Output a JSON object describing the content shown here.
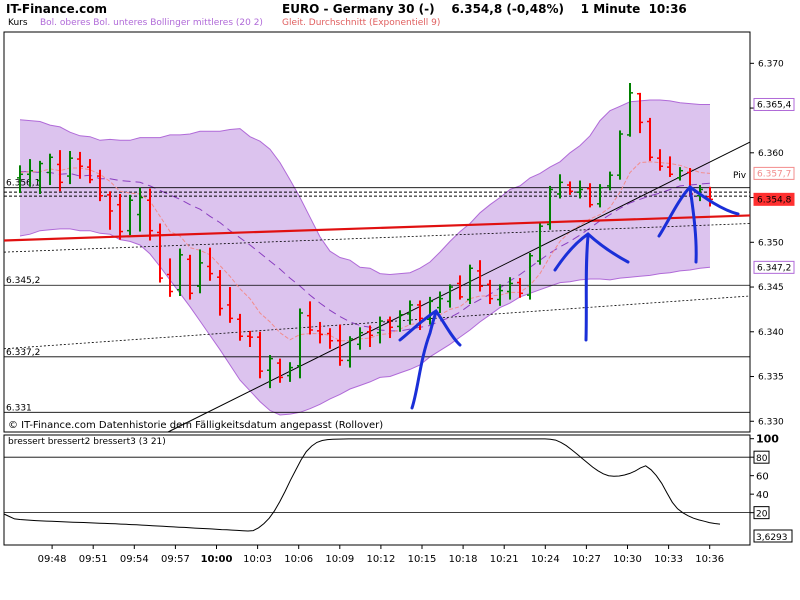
{
  "header": {
    "brand": "IT-Finance.com",
    "instrument": "EURO - Germany 30 (-)",
    "quote": "6.354,8 (-0,48%)",
    "interval": "1 Minute",
    "time": "10:36"
  },
  "legend": {
    "price_label": "Kurs",
    "bollinger": "Bol. oberes Bol. unteres Bollinger mittleres (20 2)",
    "ema": "Gleit. Durchschnitt (Exponentiell 9)"
  },
  "footer_note": "© IT-Finance.com Datenhistorie dem Fälligkeitsdatum angepasst (Rollover)",
  "indicator_legend": "bressert bressert2 bressert3 (3 21)",
  "pivot_label": "Piv",
  "colors": {
    "up": "#008000",
    "down": "#ff0000",
    "band": "#dcc3ee",
    "band_line": "#b06ad8",
    "ema": "#f28c8c",
    "trend": "#e01010",
    "annot": "#1a2fd8",
    "last_tag": "#ff3030"
  },
  "chart_data": [
    {
      "type": "ohlc",
      "title": "EURO - Germany 30 (-)",
      "x_ticks": [
        "09:48",
        "09:51",
        "09:54",
        "09:57",
        "10:00",
        "10:03",
        "10:06",
        "10:09",
        "10:12",
        "10:15",
        "10:18",
        "10:21",
        "10:24",
        "10:27",
        "10:30",
        "10:33",
        "10:36"
      ],
      "y_ticks": [
        "6.330",
        "6.335",
        "6.340",
        "6.345",
        "6.350",
        "6.355",
        "6.360",
        "6.365",
        "6.370"
      ],
      "ylim": [
        6328.8,
        6373.5
      ],
      "level_labels": [
        "6.356,1",
        "6.345,2",
        "6.337,2",
        "6.331"
      ],
      "level_values": [
        6356.1,
        6345.2,
        6337.2,
        6331.0
      ],
      "price_tags": [
        {
          "label": "6.365,4",
          "value": 6365.4,
          "kind": "upper"
        },
        {
          "label": "6.357,7",
          "value": 6357.7,
          "kind": "ema"
        },
        {
          "label": "6.354,8",
          "value": 6354.8,
          "kind": "last"
        },
        {
          "label": "6.347,2",
          "value": 6347.2,
          "kind": "lower"
        }
      ],
      "pivot": 6355.6,
      "bars": [
        {
          "t": "09:46",
          "o": 6357.2,
          "h": 6358.6,
          "l": 6355.5,
          "c": 6357.6
        },
        {
          "t": "09:46",
          "o": 6357.6,
          "h": 6359.3,
          "l": 6356.2,
          "c": 6358.0
        },
        {
          "t": "09:47",
          "o": 6356.9,
          "h": 6359.1,
          "l": 6355.4,
          "c": 6358.8
        },
        {
          "t": "09:47",
          "o": 6357.8,
          "h": 6359.9,
          "l": 6356.4,
          "c": 6359.5
        },
        {
          "t": "09:48",
          "o": 6358.7,
          "h": 6360.3,
          "l": 6355.7,
          "c": 6356.7
        },
        {
          "t": "09:48",
          "o": 6357.4,
          "h": 6360.2,
          "l": 6356.5,
          "c": 6359.4
        },
        {
          "t": "09:49",
          "o": 6359.3,
          "h": 6360.1,
          "l": 6357.1,
          "c": 6358.5
        },
        {
          "t": "09:49",
          "o": 6358.4,
          "h": 6359.3,
          "l": 6356.6,
          "c": 6357.0
        },
        {
          "t": "09:50",
          "o": 6357.4,
          "h": 6358.1,
          "l": 6354.6,
          "c": 6355.2
        },
        {
          "t": "09:50",
          "o": 6355.3,
          "h": 6355.7,
          "l": 6351.4,
          "c": 6353.5
        },
        {
          "t": "09:51",
          "o": 6354.2,
          "h": 6355.4,
          "l": 6350.3,
          "c": 6351.2
        },
        {
          "t": "09:51",
          "o": 6351.3,
          "h": 6355.3,
          "l": 6350.8,
          "c": 6354.7
        },
        {
          "t": "09:52",
          "o": 6353.1,
          "h": 6356.1,
          "l": 6351.2,
          "c": 6355.0
        },
        {
          "t": "09:52",
          "o": 6354.7,
          "h": 6356.0,
          "l": 6350.2,
          "c": 6351.3
        },
        {
          "t": "09:53",
          "o": 6351.1,
          "h": 6352.1,
          "l": 6345.5,
          "c": 6346.0
        },
        {
          "t": "09:53",
          "o": 6346.4,
          "h": 6348.2,
          "l": 6343.9,
          "c": 6344.5
        },
        {
          "t": "09:54",
          "o": 6344.7,
          "h": 6349.3,
          "l": 6344.0,
          "c": 6348.6
        },
        {
          "t": "09:54",
          "o": 6348.1,
          "h": 6348.6,
          "l": 6343.6,
          "c": 6344.3
        },
        {
          "t": "09:55",
          "o": 6345.1,
          "h": 6349.2,
          "l": 6344.3,
          "c": 6347.7
        },
        {
          "t": "09:55",
          "o": 6347.3,
          "h": 6349.4,
          "l": 6345.7,
          "c": 6346.5
        },
        {
          "t": "09:56",
          "o": 6346.1,
          "h": 6346.9,
          "l": 6341.8,
          "c": 6342.6
        },
        {
          "t": "09:56",
          "o": 6343.0,
          "h": 6345.0,
          "l": 6341.0,
          "c": 6341.5
        },
        {
          "t": "09:57",
          "o": 6341.4,
          "h": 6342.0,
          "l": 6339.0,
          "c": 6339.5
        },
        {
          "t": "09:57",
          "o": 6339.5,
          "h": 6340.1,
          "l": 6338.3,
          "c": 6339.4
        },
        {
          "t": "09:58",
          "o": 6339.4,
          "h": 6340.0,
          "l": 6334.8,
          "c": 6335.6
        },
        {
          "t": "09:58",
          "o": 6335.7,
          "h": 6337.4,
          "l": 6333.7,
          "c": 6337.0
        },
        {
          "t": "09:59",
          "o": 6336.5,
          "h": 6337.0,
          "l": 6334.3,
          "c": 6334.9
        },
        {
          "t": "09:59",
          "o": 6335.1,
          "h": 6336.6,
          "l": 6334.4,
          "c": 6336.0
        },
        {
          "t": "10:00",
          "o": 6336.2,
          "h": 6342.6,
          "l": 6334.8,
          "c": 6342.1
        },
        {
          "t": "10:00",
          "o": 6341.8,
          "h": 6343.4,
          "l": 6339.7,
          "c": 6340.2
        },
        {
          "t": "10:01",
          "o": 6340.1,
          "h": 6341.1,
          "l": 6338.7,
          "c": 6339.7
        },
        {
          "t": "10:01",
          "o": 6339.8,
          "h": 6340.4,
          "l": 6338.1,
          "c": 6339.0
        },
        {
          "t": "10:02",
          "o": 6339.0,
          "h": 6340.8,
          "l": 6336.2,
          "c": 6336.8
        },
        {
          "t": "10:02",
          "o": 6336.8,
          "h": 6339.5,
          "l": 6336.0,
          "c": 6339.2
        },
        {
          "t": "10:03",
          "o": 6338.6,
          "h": 6340.5,
          "l": 6338.0,
          "c": 6339.9
        },
        {
          "t": "10:03",
          "o": 6340.0,
          "h": 6340.7,
          "l": 6338.3,
          "c": 6339.6
        },
        {
          "t": "10:04",
          "o": 6339.9,
          "h": 6341.7,
          "l": 6338.7,
          "c": 6341.2
        },
        {
          "t": "10:04",
          "o": 6341.3,
          "h": 6341.7,
          "l": 6339.3,
          "c": 6340.5
        },
        {
          "t": "10:05",
          "o": 6340.6,
          "h": 6342.4,
          "l": 6340.0,
          "c": 6341.9
        },
        {
          "t": "10:05",
          "o": 6342.0,
          "h": 6343.5,
          "l": 6340.8,
          "c": 6343.0
        },
        {
          "t": "10:06",
          "o": 6343.0,
          "h": 6343.5,
          "l": 6340.2,
          "c": 6341.5
        },
        {
          "t": "10:06",
          "o": 6341.4,
          "h": 6343.9,
          "l": 6340.8,
          "c": 6343.4
        },
        {
          "t": "10:07",
          "o": 6342.7,
          "h": 6344.5,
          "l": 6342.1,
          "c": 6343.7
        },
        {
          "t": "10:07",
          "o": 6343.4,
          "h": 6345.3,
          "l": 6342.7,
          "c": 6345.0
        },
        {
          "t": "10:08",
          "o": 6345.4,
          "h": 6346.3,
          "l": 6343.6,
          "c": 6343.9
        },
        {
          "t": "10:08",
          "o": 6343.6,
          "h": 6347.5,
          "l": 6343.1,
          "c": 6347.1
        },
        {
          "t": "10:09",
          "o": 6346.8,
          "h": 6348.0,
          "l": 6344.5,
          "c": 6345.1
        },
        {
          "t": "10:09",
          "o": 6345.3,
          "h": 6345.8,
          "l": 6343.1,
          "c": 6343.7
        },
        {
          "t": "10:10",
          "o": 6343.6,
          "h": 6345.3,
          "l": 6342.9,
          "c": 6344.6
        },
        {
          "t": "10:10",
          "o": 6344.5,
          "h": 6346.1,
          "l": 6343.6,
          "c": 6345.4
        },
        {
          "t": "10:11",
          "o": 6345.5,
          "h": 6346.0,
          "l": 6343.8,
          "c": 6344.3
        },
        {
          "t": "10:11",
          "o": 6344.1,
          "h": 6348.8,
          "l": 6343.6,
          "c": 6348.5
        },
        {
          "t": "10:12",
          "o": 6347.9,
          "h": 6352.1,
          "l": 6347.5,
          "c": 6351.8
        },
        {
          "t": "10:12",
          "o": 6352.0,
          "h": 6356.3,
          "l": 6351.4,
          "c": 6355.9
        },
        {
          "t": "10:13",
          "o": 6355.4,
          "h": 6357.6,
          "l": 6354.9,
          "c": 6356.7
        },
        {
          "t": "10:13",
          "o": 6356.4,
          "h": 6356.8,
          "l": 6355.3,
          "c": 6355.7
        },
        {
          "t": "10:14",
          "o": 6355.6,
          "h": 6356.9,
          "l": 6354.9,
          "c": 6355.9
        },
        {
          "t": "10:14",
          "o": 6356.0,
          "h": 6356.6,
          "l": 6353.9,
          "c": 6354.2
        },
        {
          "t": "10:15",
          "o": 6354.3,
          "h": 6356.5,
          "l": 6353.9,
          "c": 6356.1
        },
        {
          "t": "10:15",
          "o": 6356.3,
          "h": 6357.9,
          "l": 6355.8,
          "c": 6357.5
        },
        {
          "t": "10:16",
          "o": 6357.5,
          "h": 6362.5,
          "l": 6357.0,
          "c": 6362.1
        },
        {
          "t": "10:16",
          "o": 6362.0,
          "h": 6367.8,
          "l": 6361.8,
          "c": 6366.7
        },
        {
          "t": "10:17",
          "o": 6366.6,
          "h": 6366.7,
          "l": 6362.2,
          "c": 6363.4
        },
        {
          "t": "10:17",
          "o": 6363.5,
          "h": 6363.9,
          "l": 6359.1,
          "c": 6359.5
        },
        {
          "t": "10:18",
          "o": 6359.4,
          "h": 6360.4,
          "l": 6358.0,
          "c": 6358.5
        },
        {
          "t": "10:18",
          "o": 6358.4,
          "h": 6359.6,
          "l": 6357.3,
          "c": 6357.6
        },
        {
          "t": "10:19",
          "o": 6357.2,
          "h": 6358.4,
          "l": 6356.9,
          "c": 6358.0
        },
        {
          "t": "10:19",
          "o": 6357.8,
          "h": 6358.3,
          "l": 6355.2,
          "c": 6355.4
        },
        {
          "t": "10:20",
          "o": 6355.2,
          "h": 6356.4,
          "l": 6354.6,
          "c": 6355.9
        },
        {
          "t": "10:20",
          "o": 6355.1,
          "h": 6356.2,
          "l": 6354.0,
          "c": 6354.8
        }
      ],
      "bollinger": {
        "upper": [
          6363.7,
          6363.6,
          6363.5,
          6363.1,
          6362.9,
          6362.3,
          6361.9,
          6361.8,
          6361.4,
          6361.5,
          6361.4,
          6361.4,
          6361.7,
          6361.7,
          6361.7,
          6362.0,
          6362.0,
          6362.1,
          6362.4,
          6362.4,
          6362.4,
          6362.6,
          6362.7,
          6361.8,
          6361.3,
          6360.4,
          6358.9,
          6357.0,
          6355.0,
          6352.8,
          6350.6,
          6349.0,
          6348.3,
          6348.0,
          6347.2,
          6347.1,
          6346.5,
          6346.4,
          6346.5,
          6346.6,
          6347.1,
          6347.8,
          6348.9,
          6350.1,
          6351.2,
          6352.1,
          6353.3,
          6354.2,
          6355.0,
          6355.9,
          6356.3,
          6357.2,
          6357.7,
          6358.4,
          6359.0,
          6360.0,
          6360.8,
          6361.9,
          6363.6,
          6364.7,
          6365.2,
          6365.7,
          6365.8,
          6365.9,
          6365.9,
          6365.8,
          6365.6,
          6365.5,
          6365.4,
          6365.4
        ],
        "middle": [
          6357.9,
          6357.9,
          6357.8,
          6357.8,
          6357.6,
          6357.7,
          6357.4,
          6357.5,
          6357.1,
          6357.1,
          6356.9,
          6356.8,
          6356.7,
          6356.3,
          6355.8,
          6355.3,
          6354.8,
          6354.2,
          6353.7,
          6352.9,
          6352.2,
          6351.3,
          6350.5,
          6349.7,
          6348.8,
          6347.9,
          6347.0,
          6346.0,
          6345.1,
          6344.1,
          6343.2,
          6342.4,
          6341.7,
          6341.1,
          6340.7,
          6340.5,
          6340.2,
          6340.1,
          6340.1,
          6340.3,
          6340.5,
          6340.7,
          6341.2,
          6341.6,
          6342.2,
          6343.0,
          6343.6,
          6344.2,
          6344.9,
          6345.7,
          6346.4,
          6347.2,
          6348.0,
          6348.8,
          6349.5,
          6350.1,
          6350.8,
          6351.6,
          6352.4,
          6353.1,
          6353.8,
          6354.4,
          6354.8,
          6355.2,
          6355.5,
          6355.9,
          6356.3,
          6356.4,
          6356.5,
          6356.6
        ],
        "lower": [
          6350.7,
          6350.9,
          6351.3,
          6351.4,
          6351.5,
          6351.5,
          6351.3,
          6351.3,
          6351.0,
          6350.9,
          6350.3,
          6350.1,
          6349.7,
          6348.7,
          6347.3,
          6345.8,
          6344.3,
          6342.8,
          6341.2,
          6339.6,
          6338.0,
          6336.3,
          6334.6,
          6333.4,
          6332.2,
          6331.2,
          6330.7,
          6330.8,
          6331.0,
          6331.4,
          6331.9,
          6332.5,
          6333.0,
          6333.6,
          6334.0,
          6334.4,
          6334.9,
          6335.0,
          6335.4,
          6335.8,
          6336.3,
          6337.2,
          6337.9,
          6338.6,
          6339.4,
          6340.2,
          6341.1,
          6341.9,
          6342.7,
          6343.2,
          6343.9,
          6344.3,
          6344.7,
          6345.1,
          6345.5,
          6345.6,
          6345.8,
          6345.9,
          6345.9,
          6345.8,
          6346.0,
          6346.1,
          6346.2,
          6346.3,
          6346.5,
          6346.6,
          6346.8,
          6346.9,
          6347.1,
          6347.2
        ]
      },
      "ema9": [
        6357.8,
        6357.9,
        6357.9,
        6358.2,
        6358.0,
        6358.3,
        6358.3,
        6358.1,
        6357.6,
        6356.8,
        6355.7,
        6355.5,
        6355.4,
        6354.6,
        6352.9,
        6351.2,
        6350.7,
        6349.4,
        6349.1,
        6348.6,
        6347.4,
        6346.2,
        6344.8,
        6343.7,
        6342.1,
        6341.1,
        6339.9,
        6339.1,
        6339.7,
        6339.8,
        6339.8,
        6339.6,
        6339.0,
        6339.0,
        6339.2,
        6339.3,
        6339.7,
        6339.8,
        6340.3,
        6340.8,
        6341.0,
        6341.5,
        6341.9,
        6342.5,
        6342.8,
        6343.7,
        6344.0,
        6344.0,
        6344.1,
        6344.4,
        6344.4,
        6345.2,
        6346.5,
        6348.4,
        6350.1,
        6351.2,
        6351.9,
        6352.6,
        6353.1,
        6353.9,
        6355.6,
        6357.8,
        6358.9,
        6359.0,
        6358.9,
        6358.8,
        6358.6,
        6358.2,
        6357.8,
        6357.7
      ],
      "trend_line_red": [
        {
          "x": "09:45",
          "y": 6350.2
        },
        {
          "x": "10:37",
          "y": 6353.0
        }
      ],
      "indicator_tags": [
        "80",
        "20",
        "3,6293"
      ]
    },
    {
      "type": "line",
      "title": "bressert bressert2 bressert3 (3 21)",
      "x_ticks": [
        "09:48",
        "09:51",
        "09:54",
        "09:57",
        "10:00",
        "10:03",
        "10:06",
        "10:09",
        "10:12",
        "10:15",
        "10:18",
        "10:21",
        "10:24",
        "10:27",
        "10:30",
        "10:33",
        "10:36"
      ],
      "y_ticks": [
        "100",
        "80",
        "60",
        "40",
        "20"
      ],
      "ylim": [
        -15,
        104
      ],
      "reference_lines": [
        80,
        20
      ],
      "values": [
        18.5,
        15.8,
        13.2,
        12.6,
        12.1,
        11.8,
        11.4,
        11.1,
        10.9,
        10.6,
        10.4,
        10.2,
        9.9,
        9.7,
        9.5,
        9.3,
        9.0,
        8.8,
        8.6,
        8.4,
        8.1,
        7.9,
        7.6,
        7.4,
        7.1,
        6.8,
        6.5,
        6.2,
        5.9,
        5.6,
        5.2,
        4.9,
        4.6,
        4.3,
        4.0,
        3.6,
        3.3,
        3.0,
        2.7,
        2.4,
        2.0,
        1.7,
        1.5,
        1.1,
        0.8,
        0.5,
        0.1,
        0.6,
        3.6,
        8.2,
        14.0,
        22.0,
        32.0,
        43.0,
        55.0,
        66.0,
        77.0,
        86.0,
        92.0,
        96.0,
        98.0,
        99.0,
        99.4,
        99.6,
        99.7,
        99.8,
        99.8,
        99.8,
        99.8,
        99.8,
        99.8,
        99.8,
        99.8,
        99.8,
        99.8,
        99.8,
        99.8,
        99.8,
        99.8,
        99.8,
        99.8,
        99.8,
        99.8,
        99.8,
        99.8,
        99.8,
        99.8,
        99.8,
        99.8,
        99.8,
        99.8,
        99.8,
        99.8,
        99.8,
        99.8,
        99.8,
        99.8,
        99.8,
        99.8,
        99.8,
        99.8,
        99.8,
        99.8,
        99.5,
        98.5,
        96.0,
        92.5,
        88.2,
        83.6,
        78.7,
        73.9,
        69.3,
        65.3,
        62.0,
        60.0,
        59.3,
        59.6,
        60.7,
        62.5,
        65.0,
        68.4,
        70.7,
        66.3,
        60.0,
        51.8,
        41.3,
        31.2,
        24.2,
        19.8,
        16.6,
        14.0,
        12.2,
        10.7,
        9.2,
        8.3,
        7.6
      ]
    }
  ]
}
